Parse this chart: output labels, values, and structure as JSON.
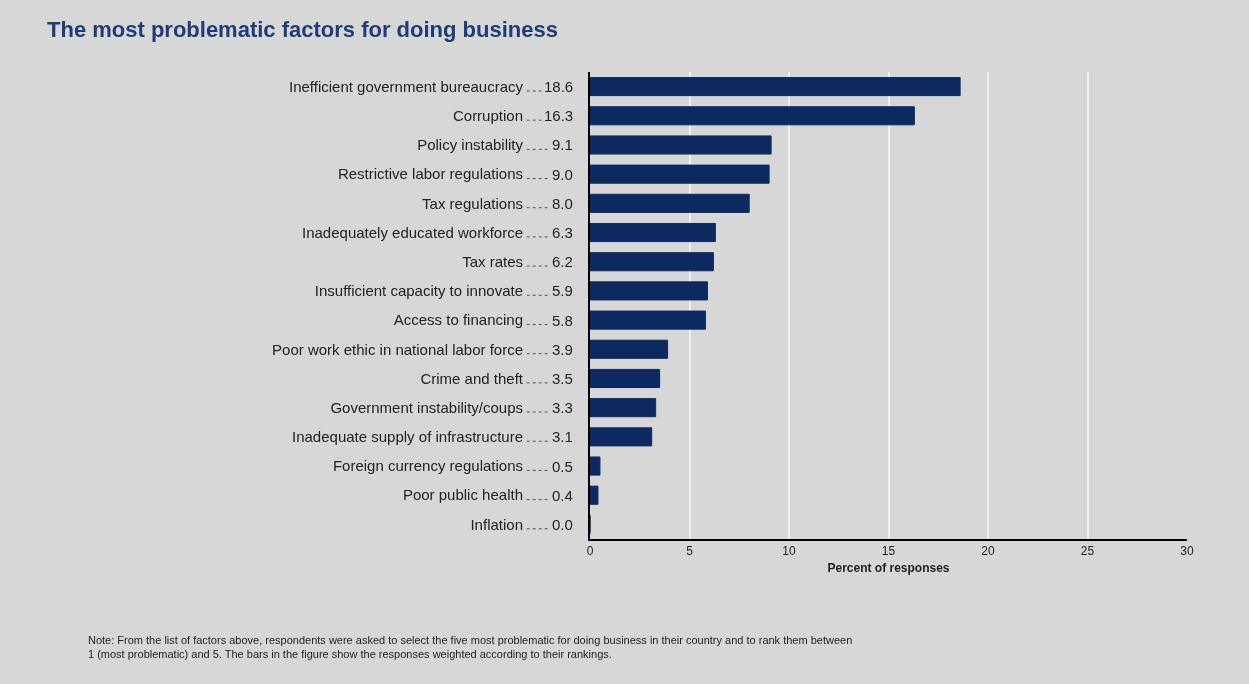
{
  "chart_data": {
    "type": "bar",
    "orientation": "horizontal",
    "title": "The most problematic factors for doing business",
    "xlabel": "Percent of responses",
    "categories": [
      "Inefficient government bureaucracy",
      "Corruption",
      "Policy instability",
      "Restrictive labor regulations",
      "Tax regulations",
      "Inadequately educated workforce",
      "Tax rates",
      "Insufficient capacity to innovate",
      "Access to financing",
      "Poor work ethic in national labor force",
      "Crime and theft",
      "Government instability/coups",
      "Inadequate supply of infrastructure",
      "Foreign currency regulations",
      "Poor public health",
      "Inflation"
    ],
    "values": [
      18.6,
      16.3,
      9.1,
      9.0,
      8.0,
      6.3,
      6.2,
      5.9,
      5.8,
      3.9,
      3.5,
      3.3,
      3.1,
      0.5,
      0.4,
      0.0
    ],
    "value_labels": [
      "18.6",
      "16.3",
      "9.1",
      "9.0",
      "8.0",
      "6.3",
      "6.2",
      "5.9",
      "5.8",
      "3.9",
      "3.5",
      "3.3",
      "3.1",
      "0.5",
      "0.4",
      "0.0"
    ],
    "color": "#0c2a5f",
    "xlim": [
      0,
      30
    ],
    "xticks": [
      0,
      5,
      10,
      15,
      20,
      25,
      30
    ],
    "grid": "x",
    "annotations": [
      "Note: From the list of factors above, respondents were asked to select the five most problematic for doing business in their country and to rank them between\n1 (most problematic) and 5. The bars in the figure show the responses weighted according to their rankings."
    ]
  }
}
